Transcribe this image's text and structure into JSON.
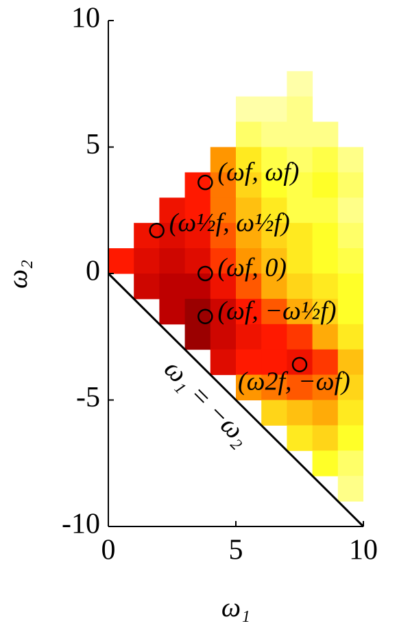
{
  "chart_data": {
    "type": "heatmap",
    "xlabel": "ω₁",
    "ylabel": "ω₂",
    "xlim": [
      0,
      10
    ],
    "ylim": [
      -10,
      10
    ],
    "xticks": [
      0,
      5,
      10
    ],
    "yticks": [
      -10,
      -5,
      0,
      5,
      10
    ],
    "z": [
      [
        null,
        null,
        null,
        null,
        null,
        null,
        null,
        null,
        null,
        null
      ],
      [
        null,
        null,
        null,
        null,
        null,
        null,
        null,
        null,
        null,
        null
      ],
      [
        null,
        null,
        null,
        null,
        null,
        null,
        null,
        0.05,
        null,
        null
      ],
      [
        null,
        null,
        null,
        null,
        null,
        0.05,
        0.05,
        0.1,
        null,
        null
      ],
      [
        null,
        null,
        null,
        null,
        null,
        0.15,
        0.1,
        0.1,
        0.1,
        null
      ],
      [
        null,
        null,
        null,
        null,
        0.5,
        0.3,
        0.2,
        0.15,
        0.2,
        0.1
      ],
      [
        null,
        null,
        null,
        0.7,
        0.55,
        0.35,
        0.25,
        0.2,
        0.25,
        0.15
      ],
      [
        null,
        null,
        0.75,
        0.7,
        0.55,
        0.4,
        0.3,
        0.2,
        0.2,
        0.1
      ],
      [
        null,
        0.75,
        0.8,
        0.75,
        0.6,
        0.45,
        0.35,
        0.3,
        0.25,
        0.15
      ],
      [
        0.7,
        0.8,
        0.85,
        0.8,
        0.65,
        0.5,
        0.4,
        0.3,
        0.25,
        0.2
      ],
      [
        null,
        0.85,
        0.9,
        0.9,
        0.75,
        0.6,
        0.45,
        0.35,
        0.3,
        0.25
      ],
      [
        null,
        null,
        0.9,
        0.95,
        0.85,
        0.7,
        0.6,
        0.45,
        0.35,
        0.25
      ],
      [
        null,
        null,
        null,
        0.95,
        0.85,
        0.75,
        0.7,
        0.65,
        0.45,
        0.3
      ],
      [
        null,
        null,
        null,
        null,
        0.8,
        0.7,
        0.7,
        0.75,
        0.65,
        0.4
      ],
      [
        null,
        null,
        null,
        null,
        null,
        0.5,
        0.55,
        0.6,
        0.55,
        0.35
      ],
      [
        null,
        null,
        null,
        null,
        null,
        null,
        0.35,
        0.4,
        0.45,
        0.3
      ],
      [
        null,
        null,
        null,
        null,
        null,
        null,
        null,
        0.3,
        0.35,
        0.25
      ],
      [
        null,
        null,
        null,
        null,
        null,
        null,
        null,
        null,
        0.25,
        0.15
      ],
      [
        null,
        null,
        null,
        null,
        null,
        null,
        null,
        null,
        null,
        0.1
      ],
      [
        null,
        null,
        null,
        null,
        null,
        null,
        null,
        null,
        null,
        null
      ]
    ],
    "points": [
      {
        "x": 3.8,
        "y": 3.6,
        "label": "(ωf, ωf)"
      },
      {
        "x": 1.9,
        "y": 1.7,
        "label": "(ω½f, ω½f)"
      },
      {
        "x": 3.8,
        "y": 0,
        "label": "(ωf, 0)"
      },
      {
        "x": 3.8,
        "y": -1.7,
        "label": "(ωf, −ω½f)"
      },
      {
        "x": 7.5,
        "y": -3.6,
        "label": "(ω2f, −ωf)"
      }
    ],
    "diagonal_label": "ω₁ = −ω₂"
  }
}
